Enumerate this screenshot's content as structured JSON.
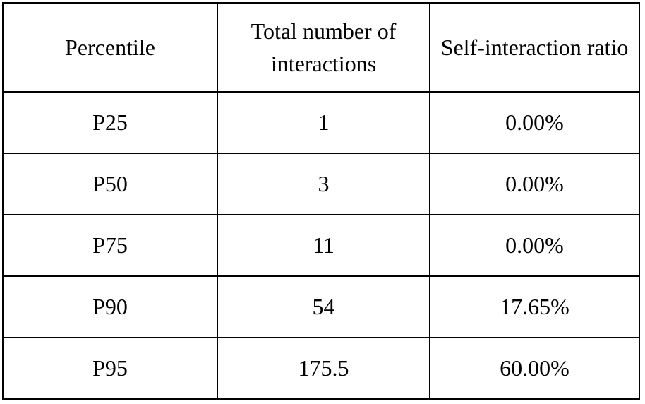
{
  "chart_data": {
    "type": "table",
    "title": "",
    "columns": [
      "Percentile",
      "Total number of interactions",
      "Self-interaction ratio"
    ],
    "rows": [
      [
        "P25",
        "1",
        "0.00%"
      ],
      [
        "P50",
        "3",
        "0.00%"
      ],
      [
        "P75",
        "11",
        "0.00%"
      ],
      [
        "P90",
        "54",
        "17.65%"
      ],
      [
        "P95",
        "175.5",
        "60.00%"
      ]
    ],
    "layout": {
      "grid": "all-borders",
      "border_color": "#000000",
      "background_color": "#ffffff",
      "text_color": "#000000",
      "alignment": "center"
    }
  }
}
